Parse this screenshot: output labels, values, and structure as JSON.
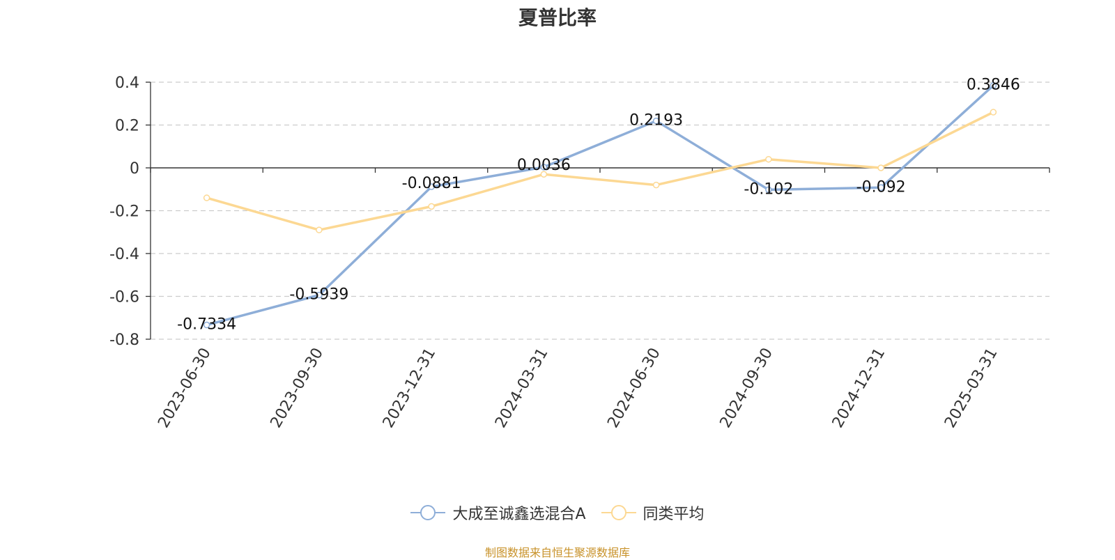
{
  "chart_data": {
    "type": "line",
    "title": "夏普比率",
    "categories": [
      "2023-06-30",
      "2023-09-30",
      "2023-12-31",
      "2024-03-31",
      "2024-06-30",
      "2024-09-30",
      "2024-12-31",
      "2025-03-31"
    ],
    "series": [
      {
        "name": "大成至诚鑫选混合A",
        "values": [
          -0.7334,
          -0.5939,
          -0.0881,
          0.0036,
          0.2193,
          -0.102,
          -0.092,
          0.3846
        ],
        "labels": [
          "-0.7334",
          "-0.5939",
          "-0.0881",
          "0.0036",
          "0.2193",
          "-0.102",
          "-0.092",
          "0.3846"
        ],
        "color": "#8eaed8"
      },
      {
        "name": "同类平均",
        "values": [
          -0.14,
          -0.29,
          -0.18,
          -0.03,
          -0.08,
          0.04,
          0.0,
          0.26
        ],
        "color": "#fcd893"
      }
    ],
    "y_ticks": [
      "0.4",
      "0.2",
      "0",
      "-0.2",
      "-0.4",
      "-0.6",
      "-0.8"
    ],
    "y_tick_values": [
      0.4,
      0.2,
      0,
      -0.2,
      -0.4,
      -0.6,
      -0.8
    ],
    "ylim": [
      -0.8,
      0.4
    ],
    "grid": "horizontal dashed",
    "legend_position": "bottom-center"
  },
  "source_text": "制图数据来自恒生聚源数据库",
  "colors": {
    "axis": "#333333",
    "grid": "#cccccc",
    "title": "#333333",
    "source": "#c8922a"
  }
}
